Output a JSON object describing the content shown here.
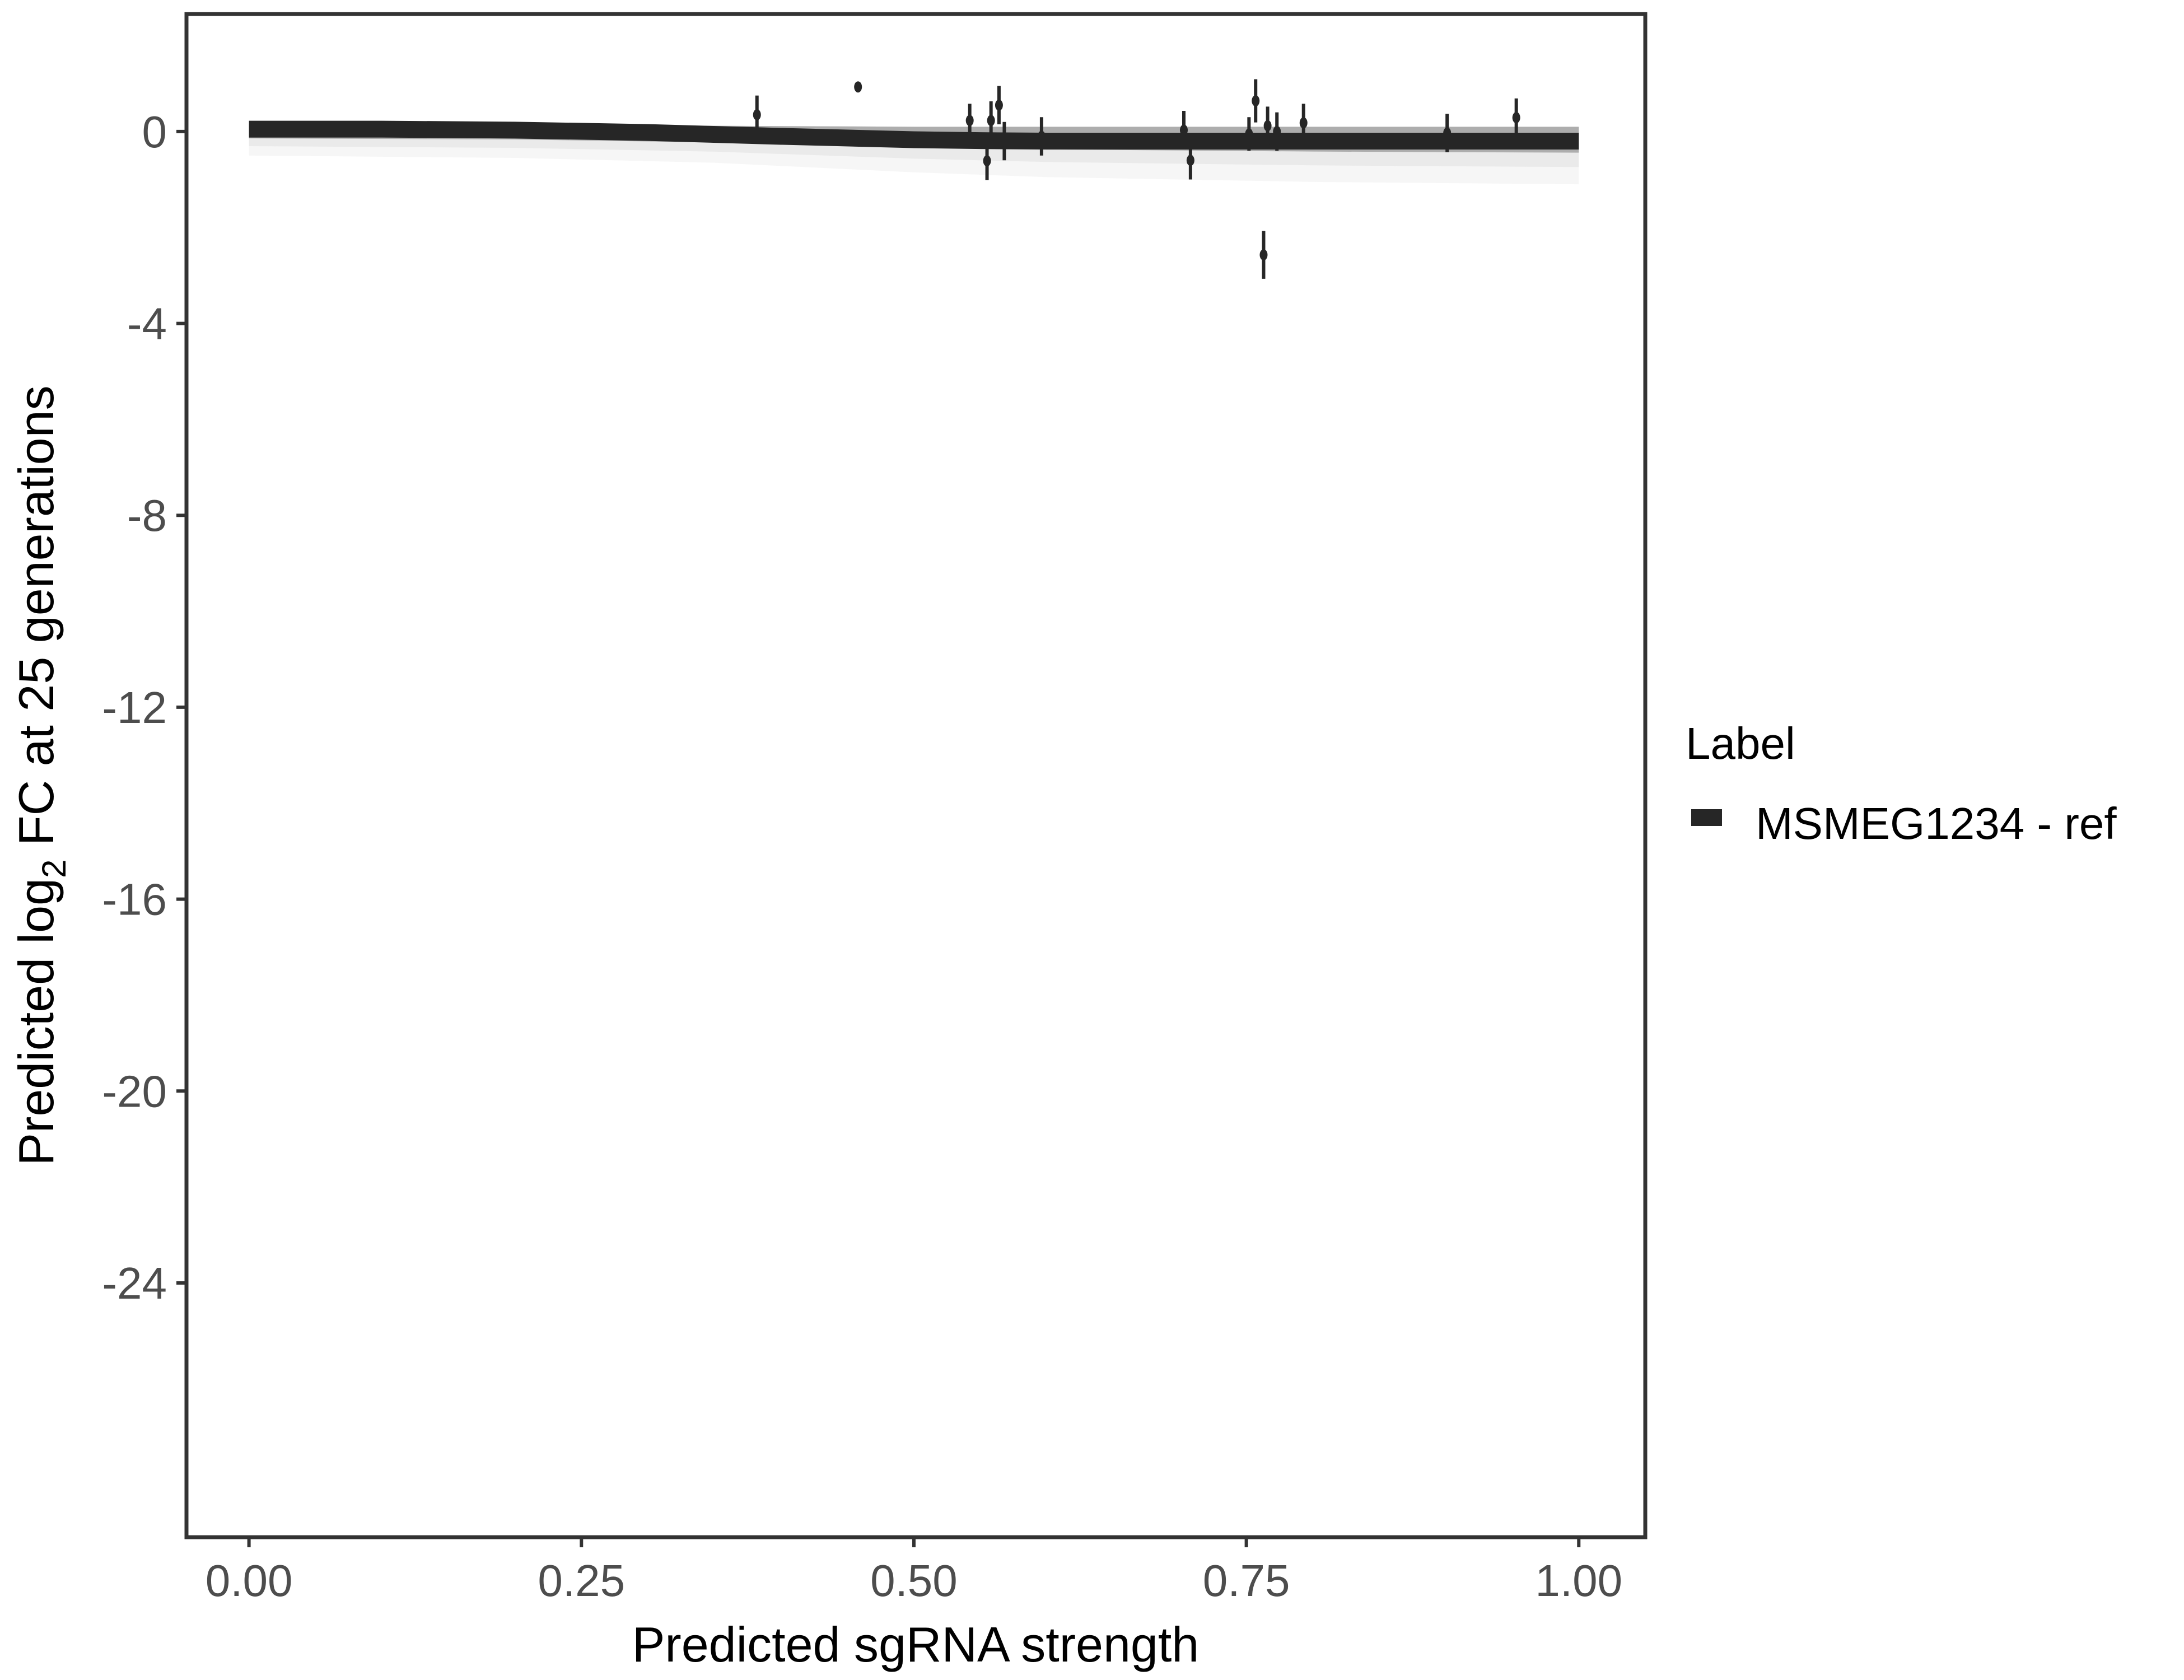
{
  "chart_data": {
    "type": "scatter",
    "title": "",
    "xlabel": "Predicted sgRNA strength",
    "ylabel_prefix": "Predicted  log",
    "ylabel_sub": "2",
    "ylabel_suffix": " FC at 25 generations",
    "xlim": [
      -0.047,
      1.05
    ],
    "ylim": [
      -29.3,
      2.45
    ],
    "x_ticks": [
      0,
      0.25,
      0.5,
      0.75,
      1.0
    ],
    "x_tick_labels": [
      "0.00",
      "0.25",
      "0.50",
      "0.75",
      "1.00"
    ],
    "y_ticks": [
      0,
      -4,
      -8,
      -12,
      -16,
      -20,
      -24
    ],
    "y_tick_labels": [
      "0",
      "-4",
      "-8",
      "-12",
      "-16",
      "-20",
      "-24"
    ],
    "grid": false,
    "legend": {
      "title": "Label",
      "placement": "right",
      "entries": [
        {
          "label": "MSMEG1234 - ref",
          "color": "#262626"
        }
      ]
    },
    "fit_line": {
      "x": [
        0,
        0.1,
        0.2,
        0.3,
        0.4,
        0.5,
        0.55,
        0.6,
        0.7,
        0.8,
        0.9,
        1.0
      ],
      "y": [
        0.05,
        0.05,
        0.03,
        -0.02,
        -0.1,
        -0.17,
        -0.19,
        -0.2,
        -0.2,
        -0.2,
        -0.2,
        -0.2
      ],
      "color": "#262626"
    },
    "ribbon": {
      "x": [
        0,
        0.2,
        0.35,
        0.5,
        0.6,
        0.8,
        1.0
      ],
      "upper": [
        0.15,
        0.15,
        0.12,
        0.1,
        0.1,
        0.1,
        0.1
      ],
      "lower": [
        -0.5,
        -0.55,
        -0.65,
        -0.85,
        -0.95,
        -1.05,
        -1.1
      ],
      "color": "#a6a6a6"
    },
    "points": [
      {
        "x": 0.382,
        "y": 0.35,
        "err": 0.4
      },
      {
        "x": 0.458,
        "y": 0.93,
        "err": 0.05
      },
      {
        "x": 0.542,
        "y": 0.23,
        "err": 0.35
      },
      {
        "x": 0.555,
        "y": -0.61,
        "err": 0.4
      },
      {
        "x": 0.558,
        "y": 0.23,
        "err": 0.4
      },
      {
        "x": 0.564,
        "y": 0.55,
        "err": 0.4
      },
      {
        "x": 0.568,
        "y": -0.2,
        "err": 0.4
      },
      {
        "x": 0.596,
        "y": -0.1,
        "err": 0.4
      },
      {
        "x": 0.703,
        "y": 0.03,
        "err": 0.4
      },
      {
        "x": 0.708,
        "y": -0.6,
        "err": 0.4
      },
      {
        "x": 0.752,
        "y": -0.05,
        "err": 0.35
      },
      {
        "x": 0.757,
        "y": 0.64,
        "err": 0.45
      },
      {
        "x": 0.763,
        "y": -2.57,
        "err": 0.5
      },
      {
        "x": 0.766,
        "y": 0.12,
        "err": 0.4
      },
      {
        "x": 0.773,
        "y": 0.0,
        "err": 0.4
      },
      {
        "x": 0.793,
        "y": 0.18,
        "err": 0.4
      },
      {
        "x": 0.901,
        "y": -0.03,
        "err": 0.4
      },
      {
        "x": 0.953,
        "y": 0.29,
        "err": 0.4
      }
    ],
    "point_color": "#262626"
  }
}
